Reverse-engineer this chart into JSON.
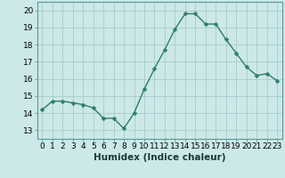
{
  "x": [
    0,
    1,
    2,
    3,
    4,
    5,
    6,
    7,
    8,
    9,
    10,
    11,
    12,
    13,
    14,
    15,
    16,
    17,
    18,
    19,
    20,
    21,
    22,
    23
  ],
  "y": [
    14.2,
    14.7,
    14.7,
    14.6,
    14.5,
    14.3,
    13.7,
    13.7,
    13.1,
    14.0,
    15.4,
    16.6,
    17.7,
    18.9,
    19.8,
    19.8,
    19.2,
    19.2,
    18.3,
    17.5,
    16.7,
    16.2,
    16.3,
    15.9
  ],
  "line_color": "#2e7d6e",
  "marker_color": "#2e7d6e",
  "bg_color": "#cce8e8",
  "grid_color": "#aacccc",
  "xlabel": "Humidex (Indice chaleur)",
  "ylim": [
    12.5,
    20.5
  ],
  "xlim": [
    -0.5,
    23.5
  ],
  "yticks": [
    13,
    14,
    15,
    16,
    17,
    18,
    19,
    20
  ],
  "xticks": [
    0,
    1,
    2,
    3,
    4,
    5,
    6,
    7,
    8,
    9,
    10,
    11,
    12,
    13,
    14,
    15,
    16,
    17,
    18,
    19,
    20,
    21,
    22,
    23
  ],
  "xtick_labels": [
    "0",
    "1",
    "2",
    "3",
    "4",
    "5",
    "6",
    "7",
    "8",
    "9",
    "10",
    "11",
    "12",
    "13",
    "14",
    "15",
    "16",
    "17",
    "18",
    "19",
    "20",
    "21",
    "22",
    "23"
  ],
  "linewidth": 1.0,
  "markersize": 2.5,
  "tick_fontsize": 6.5,
  "label_fontsize": 7.5
}
